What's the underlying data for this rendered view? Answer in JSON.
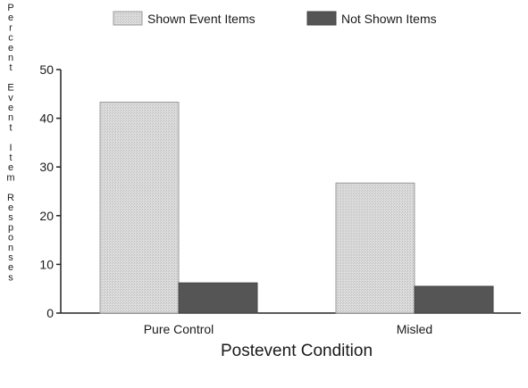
{
  "chart_data": {
    "type": "bar",
    "title": "",
    "xlabel": "Postevent Condition",
    "ylabel": "Percent Event Item Responses",
    "categories": [
      "Pure Control",
      "Misled"
    ],
    "series": [
      {
        "name": "Shown Event Items",
        "values": [
          43.3,
          26.7
        ],
        "color": "#d9d9d9"
      },
      {
        "name": "Not Shown Items",
        "values": [
          6.2,
          5.5
        ],
        "color": "#555555"
      }
    ],
    "ylim": [
      0,
      50
    ],
    "yticks": [
      0,
      10,
      20,
      30,
      40,
      50
    ],
    "grid": false,
    "legend_position": "top"
  }
}
